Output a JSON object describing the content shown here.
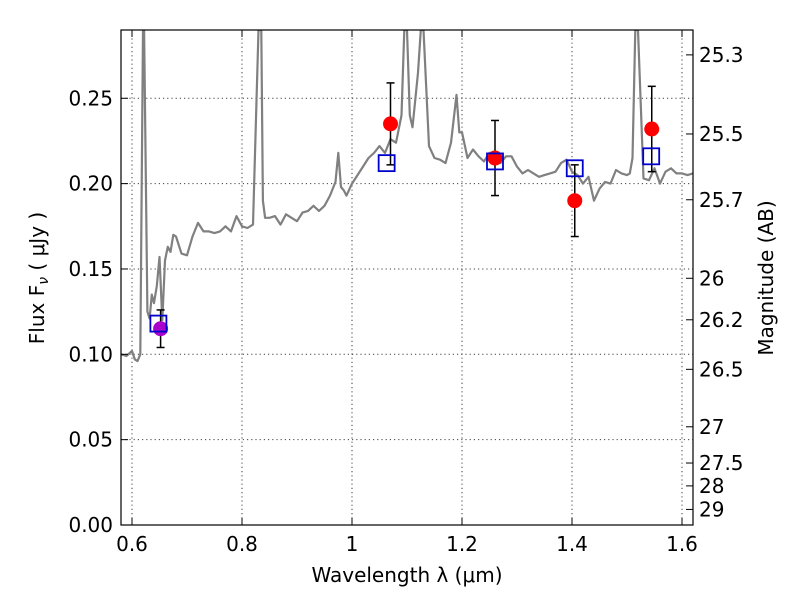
{
  "chart_data": {
    "type": "scatter",
    "xlabel": "Wavelength  λ (μm)",
    "ylabel": "Flux  F",
    "ylabel_sub": "ν",
    "ylabel_unit": " ( μJy )",
    "y2label": "Magnitude (AB)",
    "xlim": [
      0.58,
      1.62
    ],
    "ylim": [
      0.0,
      0.29
    ],
    "grid": true,
    "x_ticks": [
      0.6,
      0.8,
      1.0,
      1.2,
      1.4,
      1.6
    ],
    "x_tick_labels": [
      "0.6",
      "0.8",
      "1",
      "1.2",
      "1.4",
      "1.6"
    ],
    "y_ticks": [
      0.0,
      0.05,
      0.1,
      0.15,
      0.2,
      0.25
    ],
    "y_tick_labels": [
      "0.00",
      "0.05",
      "0.10",
      "0.15",
      "0.20",
      "0.25"
    ],
    "y2_ticks": [
      25.3,
      25.5,
      25.7,
      26.0,
      26.2,
      26.5,
      27.0,
      27.5,
      28.0,
      29.0
    ],
    "y2_tick_labels": [
      "25.3",
      "25.5",
      "25.7",
      "26",
      "26.2",
      "26.5",
      "27",
      "27.5",
      "28",
      "29"
    ],
    "series": [
      {
        "style": "line",
        "color": "#808080",
        "x": [
          0.58,
          0.59,
          0.6,
          0.605,
          0.61,
          0.615,
          0.62,
          0.622,
          0.628,
          0.632,
          0.636,
          0.64,
          0.645,
          0.65,
          0.655,
          0.66,
          0.665,
          0.67,
          0.675,
          0.68,
          0.69,
          0.7,
          0.71,
          0.72,
          0.73,
          0.74,
          0.75,
          0.76,
          0.77,
          0.78,
          0.79,
          0.8,
          0.81,
          0.82,
          0.83,
          0.835,
          0.838,
          0.842,
          0.85,
          0.86,
          0.87,
          0.88,
          0.89,
          0.9,
          0.91,
          0.92,
          0.93,
          0.94,
          0.95,
          0.96,
          0.97,
          0.975,
          0.98,
          0.985,
          0.99,
          1.0,
          1.01,
          1.02,
          1.03,
          1.04,
          1.05,
          1.06,
          1.07,
          1.08,
          1.09,
          1.095,
          1.1,
          1.105,
          1.11,
          1.12,
          1.125,
          1.13,
          1.14,
          1.15,
          1.16,
          1.17,
          1.18,
          1.19,
          1.195,
          1.2,
          1.21,
          1.22,
          1.23,
          1.24,
          1.25,
          1.26,
          1.27,
          1.28,
          1.29,
          1.3,
          1.31,
          1.32,
          1.33,
          1.34,
          1.35,
          1.36,
          1.37,
          1.38,
          1.39,
          1.4,
          1.41,
          1.42,
          1.43,
          1.44,
          1.45,
          1.46,
          1.47,
          1.48,
          1.49,
          1.5,
          1.505,
          1.51,
          1.515,
          1.52,
          1.53,
          1.54,
          1.55,
          1.56,
          1.57,
          1.58,
          1.59,
          1.6,
          1.61,
          1.62
        ],
        "y": [
          0.1,
          0.099,
          0.102,
          0.097,
          0.096,
          0.1,
          0.29,
          0.29,
          0.125,
          0.121,
          0.135,
          0.13,
          0.14,
          0.157,
          0.12,
          0.155,
          0.163,
          0.16,
          0.17,
          0.169,
          0.159,
          0.158,
          0.169,
          0.177,
          0.172,
          0.172,
          0.171,
          0.172,
          0.175,
          0.172,
          0.181,
          0.175,
          0.174,
          0.176,
          0.29,
          0.29,
          0.19,
          0.18,
          0.18,
          0.181,
          0.176,
          0.182,
          0.18,
          0.178,
          0.183,
          0.184,
          0.187,
          0.184,
          0.187,
          0.193,
          0.201,
          0.218,
          0.198,
          0.196,
          0.193,
          0.2,
          0.205,
          0.21,
          0.215,
          0.218,
          0.222,
          0.218,
          0.226,
          0.224,
          0.24,
          0.29,
          0.29,
          0.24,
          0.233,
          0.265,
          0.29,
          0.29,
          0.222,
          0.215,
          0.214,
          0.212,
          0.224,
          0.252,
          0.23,
          0.23,
          0.215,
          0.22,
          0.216,
          0.213,
          0.218,
          0.218,
          0.212,
          0.216,
          0.216,
          0.21,
          0.206,
          0.208,
          0.206,
          0.204,
          0.205,
          0.206,
          0.207,
          0.212,
          0.214,
          0.207,
          0.205,
          0.2,
          0.204,
          0.19,
          0.197,
          0.201,
          0.2,
          0.208,
          0.206,
          0.205,
          0.206,
          0.215,
          0.29,
          0.29,
          0.203,
          0.202,
          0.209,
          0.2,
          0.207,
          0.209,
          0.206,
          0.206,
          0.205,
          0.206
        ]
      },
      {
        "style": "errorbar",
        "color": "#000000",
        "x": [
          0.652,
          1.07,
          1.26,
          1.405,
          1.545
        ],
        "y": [
          0.115,
          0.235,
          0.215,
          0.19,
          0.232
        ],
        "err": [
          0.011,
          0.024,
          0.022,
          0.021,
          0.025
        ]
      },
      {
        "style": "marker-circle",
        "color": "#ff0000",
        "x": [
          1.07,
          1.26,
          1.405,
          1.545
        ],
        "y": [
          0.235,
          0.215,
          0.19,
          0.232
        ]
      },
      {
        "style": "marker-circle",
        "color": "#aa00cc",
        "x": [
          0.652
        ],
        "y": [
          0.115
        ]
      },
      {
        "style": "marker-square-open",
        "color": "#0000cc",
        "x": [
          0.648,
          1.063,
          1.26,
          1.405,
          1.544
        ],
        "y": [
          0.118,
          0.212,
          0.213,
          0.209,
          0.216
        ]
      }
    ]
  }
}
